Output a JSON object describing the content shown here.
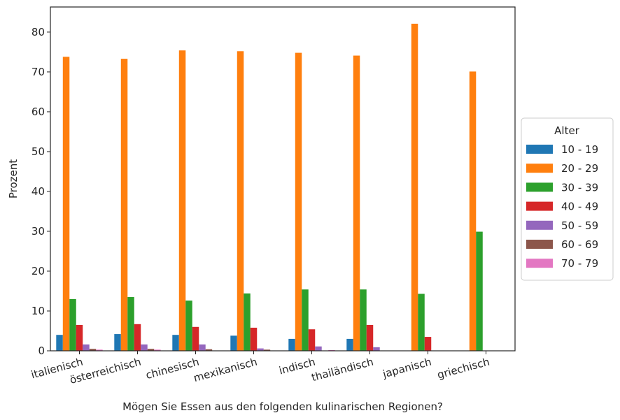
{
  "chart_data": {
    "type": "bar",
    "xlabel": "Mögen Sie Essen aus den folgenden kulinarischen Regionen?",
    "ylabel": "Prozent",
    "ylim": [
      0,
      86.3
    ],
    "yticks": [
      0,
      10,
      20,
      30,
      40,
      50,
      60,
      70,
      80
    ],
    "grid": false,
    "legend": {
      "title": "Alter",
      "placement": "right"
    },
    "categories": [
      "italienisch",
      "österreichisch",
      "chinesisch",
      "mexikanisch",
      "indisch",
      "thailändisch",
      "japanisch",
      "griechisch"
    ],
    "series": [
      {
        "name": "10 - 19",
        "color": "#1f77b4",
        "values": [
          4.0,
          4.2,
          4.0,
          3.8,
          3.0,
          3.0,
          0,
          0
        ]
      },
      {
        "name": "20 - 29",
        "color": "#ff7f0e",
        "values": [
          73.8,
          73.3,
          75.4,
          75.2,
          74.8,
          74.1,
          82.1,
          70.1
        ]
      },
      {
        "name": "30 - 39",
        "color": "#2ca02c",
        "values": [
          13.0,
          13.5,
          12.6,
          14.4,
          15.4,
          15.4,
          14.3,
          29.9
        ]
      },
      {
        "name": "40 - 49",
        "color": "#d62728",
        "values": [
          6.5,
          6.7,
          6.0,
          5.8,
          5.4,
          6.5,
          3.5,
          0
        ]
      },
      {
        "name": "50 - 59",
        "color": "#9467bd",
        "values": [
          1.6,
          1.6,
          1.6,
          0.6,
          1.1,
          0.9,
          0,
          0
        ]
      },
      {
        "name": "60 - 69",
        "color": "#8c564b",
        "values": [
          0.5,
          0.5,
          0.4,
          0.3,
          0,
          0,
          0,
          0
        ]
      },
      {
        "name": "70 - 79",
        "color": "#e377c2",
        "values": [
          0.3,
          0.3,
          0,
          0,
          0.2,
          0,
          0,
          0
        ]
      }
    ]
  }
}
